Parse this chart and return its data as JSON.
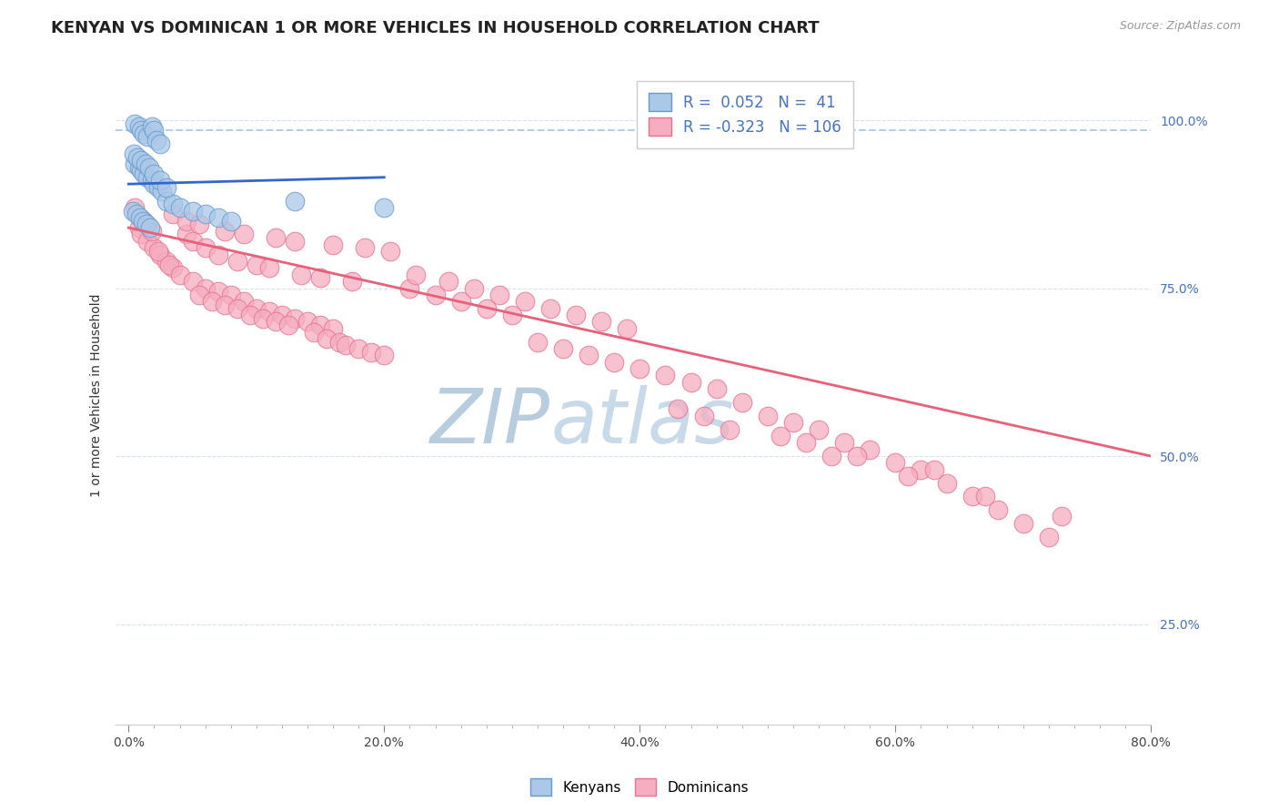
{
  "title": "KENYAN VS DOMINICAN 1 OR MORE VEHICLES IN HOUSEHOLD CORRELATION CHART",
  "source_text": "Source: ZipAtlas.com",
  "xlim": [
    -1.0,
    80.0
  ],
  "ylim": [
    10.0,
    108.0
  ],
  "xlabel_values": [
    0.0,
    20.0,
    40.0,
    60.0,
    80.0
  ],
  "ylabel_values": [
    25.0,
    50.0,
    75.0,
    100.0
  ],
  "kenyan_color": "#aac8e8",
  "dominican_color": "#f5adc0",
  "kenyan_edge_color": "#6699cc",
  "dominican_edge_color": "#e87090",
  "kenyan_R": 0.052,
  "kenyan_N": 41,
  "dominican_R": -0.323,
  "dominican_N": 106,
  "kenyan_line_color": "#3366cc",
  "dominican_line_color": "#e8607a",
  "dashed_line_color": "#b8cce4",
  "dashed_line_y": 98.5,
  "watermark_color": "#ccdaeb",
  "ylabel_label": "1 or more Vehicles in Household",
  "title_fontsize": 13,
  "tick_fontsize": 10,
  "legend_fontsize": 12,
  "marker_size": 220,
  "kenyan_x": [
    0.5,
    0.8,
    1.0,
    1.2,
    1.5,
    1.8,
    2.0,
    2.2,
    2.5,
    0.5,
    0.8,
    1.0,
    1.2,
    1.5,
    1.8,
    2.0,
    2.3,
    2.6,
    0.3,
    0.6,
    0.9,
    1.1,
    1.4,
    1.7,
    3.0,
    3.5,
    4.0,
    5.0,
    6.0,
    7.0,
    8.0,
    0.4,
    0.7,
    1.0,
    1.3,
    1.6,
    2.0,
    2.5,
    3.0,
    13.0,
    20.0
  ],
  "kenyan_y": [
    99.5,
    99.0,
    98.5,
    98.0,
    97.5,
    99.0,
    98.5,
    97.0,
    96.5,
    93.5,
    93.0,
    92.5,
    92.0,
    91.5,
    91.0,
    90.5,
    90.0,
    89.5,
    86.5,
    86.0,
    85.5,
    85.0,
    84.5,
    84.0,
    88.0,
    87.5,
    87.0,
    86.5,
    86.0,
    85.5,
    85.0,
    95.0,
    94.5,
    94.0,
    93.5,
    93.0,
    92.0,
    91.0,
    90.0,
    88.0,
    87.0
  ],
  "dominican_x": [
    0.5,
    0.8,
    1.0,
    1.5,
    2.0,
    2.5,
    3.0,
    3.5,
    1.2,
    1.8,
    2.3,
    3.2,
    4.0,
    5.0,
    6.0,
    7.0,
    8.0,
    9.0,
    10.0,
    11.0,
    12.0,
    13.0,
    14.0,
    15.0,
    16.0,
    5.5,
    6.5,
    7.5,
    8.5,
    9.5,
    10.5,
    11.5,
    12.5,
    14.5,
    15.5,
    16.5,
    17.0,
    18.0,
    19.0,
    20.0,
    4.5,
    5.0,
    6.0,
    7.0,
    8.5,
    10.0,
    11.0,
    13.5,
    15.0,
    17.5,
    3.5,
    4.5,
    5.5,
    7.5,
    9.0,
    11.5,
    13.0,
    16.0,
    18.5,
    20.5,
    22.0,
    24.0,
    26.0,
    28.0,
    30.0,
    22.5,
    25.0,
    27.0,
    29.0,
    31.0,
    33.0,
    35.0,
    37.0,
    39.0,
    32.0,
    34.0,
    36.0,
    38.0,
    40.0,
    42.0,
    44.0,
    46.0,
    48.0,
    50.0,
    52.0,
    54.0,
    56.0,
    58.0,
    60.0,
    62.0,
    64.0,
    66.0,
    68.0,
    70.0,
    72.0,
    43.0,
    47.0,
    53.0,
    57.0,
    63.0,
    45.0,
    51.0,
    55.0,
    61.0,
    67.0,
    73.0
  ],
  "dominican_y": [
    87.0,
    84.0,
    83.0,
    82.0,
    81.0,
    80.0,
    79.0,
    78.0,
    85.0,
    83.5,
    80.5,
    78.5,
    77.0,
    76.0,
    75.0,
    74.5,
    74.0,
    73.0,
    72.0,
    71.5,
    71.0,
    70.5,
    70.0,
    69.5,
    69.0,
    74.0,
    73.0,
    72.5,
    72.0,
    71.0,
    70.5,
    70.0,
    69.5,
    68.5,
    67.5,
    67.0,
    66.5,
    66.0,
    65.5,
    65.0,
    83.0,
    82.0,
    81.0,
    80.0,
    79.0,
    78.5,
    78.0,
    77.0,
    76.5,
    76.0,
    86.0,
    85.0,
    84.5,
    83.5,
    83.0,
    82.5,
    82.0,
    81.5,
    81.0,
    80.5,
    75.0,
    74.0,
    73.0,
    72.0,
    71.0,
    77.0,
    76.0,
    75.0,
    74.0,
    73.0,
    72.0,
    71.0,
    70.0,
    69.0,
    67.0,
    66.0,
    65.0,
    64.0,
    63.0,
    62.0,
    61.0,
    60.0,
    58.0,
    56.0,
    55.0,
    54.0,
    52.0,
    51.0,
    49.0,
    48.0,
    46.0,
    44.0,
    42.0,
    40.0,
    38.0,
    57.0,
    54.0,
    52.0,
    50.0,
    48.0,
    56.0,
    53.0,
    50.0,
    47.0,
    44.0,
    41.0
  ]
}
